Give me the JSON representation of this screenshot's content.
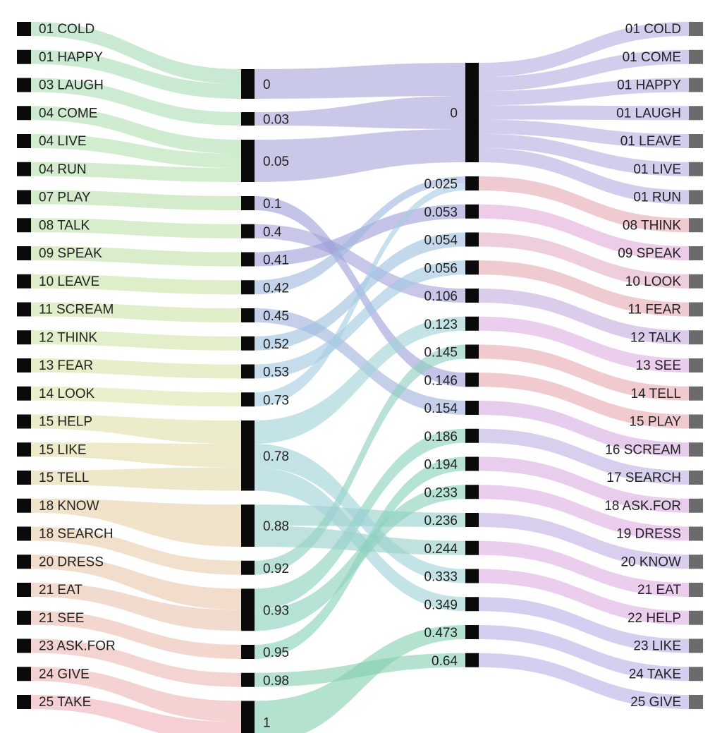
{
  "diagram": {
    "type": "alluvial",
    "colors": {
      "node_dark": "#0a0a0a",
      "node_gray": "#6b6b6b",
      "left_gradient": [
        "#a5dfbb",
        "#bfe0a8",
        "#dde6aa",
        "#e3d8a6",
        "#ebc8b0",
        "#efb3b8"
      ],
      "mid_flow": "#9ea0d8",
      "mid_flow_alt": "#8fc1dd",
      "mid_flow_low": "#84d0b4",
      "right_palette": [
        "#b4aee2",
        "#e8a8b4",
        "#dfaee2",
        "#b9b2e6"
      ]
    },
    "left_nodes": [
      {
        "label": "01 COLD",
        "target": "0",
        "color": "#a8dcb8"
      },
      {
        "label": "01 HAPPY",
        "target": "0",
        "color": "#abddb7"
      },
      {
        "label": "03 LAUGH",
        "target": "0.03",
        "color": "#aedeb5"
      },
      {
        "label": "04 COME",
        "target": "0.05",
        "color": "#b1dfb3"
      },
      {
        "label": "04 LIVE",
        "target": "0.05",
        "color": "#b4e0b1"
      },
      {
        "label": "04 RUN",
        "target": "0.05",
        "color": "#b7e0af"
      },
      {
        "label": "07 PLAY",
        "target": "0.1",
        "color": "#bbe1ad"
      },
      {
        "label": "08 TALK",
        "target": "0.4",
        "color": "#bfe2ab"
      },
      {
        "label": "09 SPEAK",
        "target": "0.41",
        "color": "#c3e2a9"
      },
      {
        "label": "10 LEAVE",
        "target": "0.42",
        "color": "#c8e3a8"
      },
      {
        "label": "11 SCREAM",
        "target": "0.45",
        "color": "#cde4a8"
      },
      {
        "label": "12 THINK",
        "target": "0.52",
        "color": "#d2e5a9"
      },
      {
        "label": "13 FEAR",
        "target": "0.53",
        "color": "#d8e5aa"
      },
      {
        "label": "14 LOOK",
        "target": "0.73",
        "color": "#dde6ab"
      },
      {
        "label": "15 HELP",
        "target": "0.78",
        "color": "#e0dfa9"
      },
      {
        "label": "15 LIKE",
        "target": "0.78",
        "color": "#e2dca8"
      },
      {
        "label": "15 TELL",
        "target": "0.78",
        "color": "#e4d8a8"
      },
      {
        "label": "18 KNOW",
        "target": "0.88",
        "color": "#e6d2aa"
      },
      {
        "label": "18 SEARCH",
        "target": "0.92",
        "color": "#e8cdac"
      },
      {
        "label": "20 DRESS",
        "target": "0.93",
        "color": "#eac8ae"
      },
      {
        "label": "21 EAT",
        "target": "0.93",
        "color": "#ebc3b0"
      },
      {
        "label": "21 SEE",
        "target": "0.95",
        "color": "#ecbfb2"
      },
      {
        "label": "23 ASK.FOR",
        "target": "0.98",
        "color": "#edbab4"
      },
      {
        "label": "24 GIVE",
        "target": "1",
        "color": "#eeb6b6"
      },
      {
        "label": "25 TAKE",
        "target": "1",
        "color": "#efb2b8"
      }
    ],
    "mid1_nodes": [
      {
        "label": "0",
        "count": 2,
        "target": "0",
        "color": "#a9a6dc"
      },
      {
        "label": "0.03",
        "count": 1,
        "target": "0",
        "color": "#a9a6dc"
      },
      {
        "label": "0.05",
        "count": 3,
        "target": "0",
        "color": "#a9a6dc"
      },
      {
        "label": "0.1",
        "count": 1,
        "target": "0.146",
        "color": "#9ea0d8"
      },
      {
        "label": "0.4",
        "count": 1,
        "target": "0.106",
        "color": "#a6a4dc"
      },
      {
        "label": "0.41",
        "count": 1,
        "target": "0.053",
        "color": "#9ea0d8"
      },
      {
        "label": "0.42",
        "count": 1,
        "target": "0.025",
        "color": "#a0b8de"
      },
      {
        "label": "0.45",
        "count": 1,
        "target": "0.154",
        "color": "#a0b2dd"
      },
      {
        "label": "0.52",
        "count": 1,
        "target": "0.054",
        "color": "#9fc0e0"
      },
      {
        "label": "0.53",
        "count": 1,
        "target": "0.056",
        "color": "#a2c6e2"
      },
      {
        "label": "0.73",
        "count": 1,
        "target": "0.025",
        "color": "#a6cde2"
      },
      {
        "label": "0.78",
        "count": 3,
        "target": "0.123",
        "color": "#9fd2d6"
      },
      {
        "label": "0.88",
        "count": 2,
        "target": "0.236",
        "color": "#98d0cc"
      },
      {
        "label": "0.92",
        "count": 1,
        "target": "0.145",
        "color": "#8ecfbf"
      },
      {
        "label": "0.93",
        "count": 2,
        "target": "0.186",
        "color": "#8ad2bd"
      },
      {
        "label": "0.95",
        "count": 1,
        "target": "0.194",
        "color": "#88d2b8"
      },
      {
        "label": "0.98",
        "count": 1,
        "target": "0.64",
        "color": "#86d0b2"
      },
      {
        "label": "1",
        "count": 2,
        "target": "0.473",
        "color": "#84d0b0"
      }
    ],
    "extra_flows": [
      {
        "source": "0.78",
        "target": "0.333",
        "color": "#9fd2d6"
      },
      {
        "source": "0.78",
        "target": "0.349",
        "color": "#9fd2d6"
      },
      {
        "source": "0.88",
        "target": "0.244",
        "color": "#98d0cc"
      },
      {
        "source": "0.93",
        "target": "0.233",
        "color": "#8ad2bd"
      }
    ],
    "mid2_nodes": [
      {
        "label": "0",
        "count": 7
      },
      {
        "label": "0.025",
        "count": 1
      },
      {
        "label": "0.053",
        "count": 1
      },
      {
        "label": "0.054",
        "count": 1
      },
      {
        "label": "0.056",
        "count": 1
      },
      {
        "label": "0.106",
        "count": 1
      },
      {
        "label": "0.123",
        "count": 1
      },
      {
        "label": "0.145",
        "count": 1
      },
      {
        "label": "0.146",
        "count": 1
      },
      {
        "label": "0.154",
        "count": 1
      },
      {
        "label": "0.186",
        "count": 1
      },
      {
        "label": "0.194",
        "count": 1
      },
      {
        "label": "0.233",
        "count": 1
      },
      {
        "label": "0.236",
        "count": 1
      },
      {
        "label": "0.244",
        "count": 1
      },
      {
        "label": "0.333",
        "count": 1
      },
      {
        "label": "0.349",
        "count": 1
      },
      {
        "label": "0.473",
        "count": 1
      },
      {
        "label": "0.64",
        "count": 1
      }
    ],
    "right_nodes": [
      {
        "label": "01 COLD",
        "source": "0",
        "color": "#b4aee2"
      },
      {
        "label": "01 COME",
        "source": "0",
        "color": "#b4aee2"
      },
      {
        "label": "01 HAPPY",
        "source": "0",
        "color": "#b4aee2"
      },
      {
        "label": "01 LAUGH",
        "source": "0",
        "color": "#b4aee2"
      },
      {
        "label": "01 LEAVE",
        "source": "0",
        "color": "#b4aee2"
      },
      {
        "label": "01 LIVE",
        "source": "0",
        "color": "#b4aee2"
      },
      {
        "label": "01 RUN",
        "source": "0",
        "color": "#b4aee2"
      },
      {
        "label": "08 THINK",
        "source": "0.025",
        "color": "#e6a9b4"
      },
      {
        "label": "09 SPEAK",
        "source": "0.053",
        "color": "#e0acd8"
      },
      {
        "label": "10 LOOK",
        "source": "0.054",
        "color": "#e3aec8"
      },
      {
        "label": "11 FEAR",
        "source": "0.056",
        "color": "#e6a9b4"
      },
      {
        "label": "12 TALK",
        "source": "0.106",
        "color": "#c6ace0"
      },
      {
        "label": "13 SEE",
        "source": "0.123",
        "color": "#dfaee2"
      },
      {
        "label": "14 TELL",
        "source": "0.145",
        "color": "#e6aab2"
      },
      {
        "label": "15 PLAY",
        "source": "0.146",
        "color": "#e6aab2"
      },
      {
        "label": "16 SCREAM",
        "source": "0.154",
        "color": "#d6aee4"
      },
      {
        "label": "17 SEARCH",
        "source": "0.186",
        "color": "#c0b0e4"
      },
      {
        "label": "18 ASK.FOR",
        "source": "0.194",
        "color": "#dbaee2"
      },
      {
        "label": "19 DRESS",
        "source": "0.233",
        "color": "#dfaee2"
      },
      {
        "label": "20 KNOW",
        "source": "0.236",
        "color": "#c4b0e4"
      },
      {
        "label": "21 EAT",
        "source": "0.244",
        "color": "#dfaee2"
      },
      {
        "label": "22 HELP",
        "source": "0.333",
        "color": "#dfaee2"
      },
      {
        "label": "23 LIKE",
        "source": "0.349",
        "color": "#b9b2e6"
      },
      {
        "label": "24 TAKE",
        "source": "0.473",
        "color": "#b9b2e6"
      },
      {
        "label": "25 GIVE",
        "source": "0.64",
        "color": "#b9b2e6"
      }
    ]
  }
}
